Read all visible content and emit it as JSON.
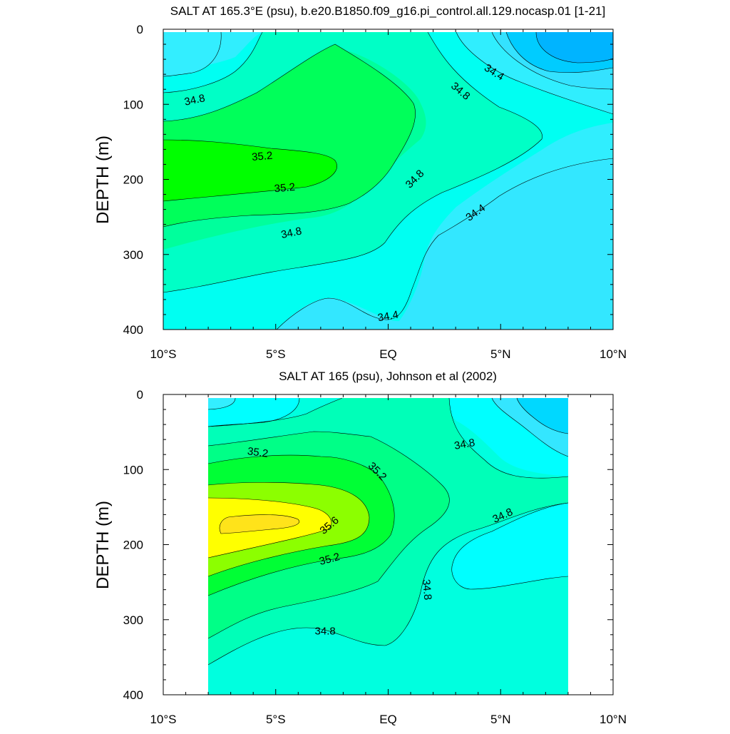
{
  "chart_data": [
    {
      "type": "heatmap",
      "title": "SALT AT 165.3°E (psu), b.e20.B1850.f09_g16.pi_control.all.129.nocasp.01 [1-21]",
      "xlabel": "",
      "ylabel": "DEPTH (m)",
      "xlim": [
        -10,
        10
      ],
      "ylim": [
        400,
        0
      ],
      "x_ticks": [
        -10,
        -5,
        0,
        5,
        10
      ],
      "x_tick_labels": [
        "10°S",
        "5°S",
        "EQ",
        "5°N",
        "10°N"
      ],
      "y_ticks": [
        0,
        100,
        200,
        300,
        400
      ],
      "y_tick_labels": [
        "0",
        "100",
        "200",
        "300",
        "400"
      ],
      "data_xlim": [
        -10,
        10
      ],
      "data_ylim": [
        4,
        400
      ],
      "contour_interval": 0.2,
      "max_value_approx": 35.4,
      "min_value_approx": 34.0,
      "contour_labels": [
        {
          "text": "34.8",
          "x": -8.6,
          "y": 95,
          "angle": -12
        },
        {
          "text": "35.2",
          "x": -5.6,
          "y": 170,
          "angle": -5
        },
        {
          "text": "35.2",
          "x": -4.6,
          "y": 212,
          "angle": -5
        },
        {
          "text": "34.8",
          "x": -4.3,
          "y": 272,
          "angle": -12
        },
        {
          "text": "34.8",
          "x": 1.2,
          "y": 200,
          "angle": -45
        },
        {
          "text": "34.4",
          "x": 0.0,
          "y": 383,
          "angle": -10
        },
        {
          "text": "34.4",
          "x": 3.9,
          "y": 245,
          "angle": -35
        },
        {
          "text": "34.8",
          "x": 3.2,
          "y": 83,
          "angle": 40
        },
        {
          "text": "34.4",
          "x": 4.7,
          "y": 58,
          "angle": 32
        }
      ]
    },
    {
      "type": "heatmap",
      "title": "SALT AT 165 (psu), Johnson et al (2002)",
      "xlabel": "",
      "ylabel": "DEPTH (m)",
      "xlim": [
        -10,
        10
      ],
      "ylim": [
        400,
        0
      ],
      "x_ticks": [
        -10,
        -5,
        0,
        5,
        10
      ],
      "x_tick_labels": [
        "10°S",
        "5°S",
        "EQ",
        "5°N",
        "10°N"
      ],
      "y_ticks": [
        0,
        100,
        200,
        300,
        400
      ],
      "y_tick_labels": [
        "0",
        "100",
        "200",
        "300",
        "400"
      ],
      "data_xlim": [
        -8,
        8
      ],
      "data_ylim": [
        5,
        400
      ],
      "contour_interval": 0.2,
      "max_value_approx": 35.8,
      "min_value_approx": 34.2,
      "contour_labels": [
        {
          "text": "35.2",
          "x": -5.8,
          "y": 78,
          "angle": 8
        },
        {
          "text": "35.2",
          "x": -0.5,
          "y": 103,
          "angle": 45
        },
        {
          "text": "34.8",
          "x": 3.4,
          "y": 67,
          "angle": -10
        },
        {
          "text": "35.6",
          "x": -2.6,
          "y": 175,
          "angle": -40
        },
        {
          "text": "35.2",
          "x": -2.6,
          "y": 220,
          "angle": -15
        },
        {
          "text": "34.8",
          "x": 1.7,
          "y": 260,
          "angle": 85
        },
        {
          "text": "34.8",
          "x": 5.1,
          "y": 162,
          "angle": -25
        },
        {
          "text": "34.8",
          "x": -2.8,
          "y": 316,
          "angle": 0
        }
      ]
    }
  ]
}
